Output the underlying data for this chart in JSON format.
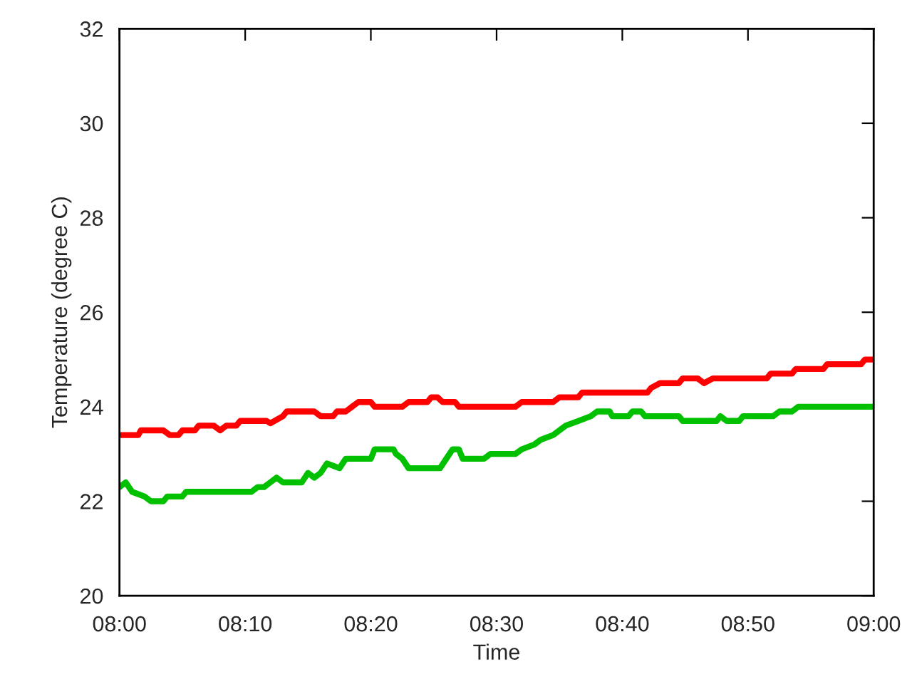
{
  "chart_data": {
    "type": "line",
    "xlabel": "Time",
    "ylabel": "Temperature (degree C)",
    "xlim": [
      8,
      9
    ],
    "ylim": [
      20,
      32
    ],
    "xticks": [
      {
        "value": 8,
        "label": "08:00"
      },
      {
        "value": 8.1667,
        "label": "08:10"
      },
      {
        "value": 8.3333,
        "label": "08:20"
      },
      {
        "value": 8.5,
        "label": "08:30"
      },
      {
        "value": 8.6667,
        "label": "08:40"
      },
      {
        "value": 8.8333,
        "label": "08:50"
      },
      {
        "value": 9,
        "label": "09:00"
      }
    ],
    "yticks": [
      20,
      22,
      24,
      26,
      28,
      30,
      32
    ],
    "grid": false,
    "marker": "none",
    "line_style": "solid",
    "series": [
      {
        "color": "#ff0000",
        "x": [
          8,
          8.025,
          8.0283,
          8.0583,
          8.0667,
          8.0783,
          8.0833,
          8.1,
          8.105,
          8.125,
          8.1333,
          8.1417,
          8.155,
          8.16,
          8.195,
          8.2,
          8.2167,
          8.2217,
          8.2583,
          8.2667,
          8.2833,
          8.2883,
          8.3,
          8.3083,
          8.3167,
          8.3333,
          8.3383,
          8.375,
          8.3833,
          8.4083,
          8.4133,
          8.4217,
          8.4283,
          8.445,
          8.45,
          8.525,
          8.5333,
          8.575,
          8.5833,
          8.6083,
          8.6133,
          8.7,
          8.705,
          8.7167,
          8.7417,
          8.7467,
          8.7667,
          8.775,
          8.7867,
          8.8583,
          8.8633,
          8.8917,
          8.8967,
          8.9333,
          8.9383,
          8.9833,
          8.9883,
          9
        ],
        "values": [
          23.4,
          23.4,
          23.5,
          23.5,
          23.4,
          23.4,
          23.5,
          23.5,
          23.6,
          23.6,
          23.5,
          23.6,
          23.6,
          23.7,
          23.7,
          23.65,
          23.8,
          23.9,
          23.9,
          23.8,
          23.8,
          23.9,
          23.9,
          24.0,
          24.1,
          24.1,
          24.0,
          24.0,
          24.1,
          24.1,
          24.2,
          24.2,
          24.1,
          24.1,
          24.0,
          24.0,
          24.1,
          24.1,
          24.2,
          24.2,
          24.3,
          24.3,
          24.4,
          24.5,
          24.5,
          24.6,
          24.6,
          24.5,
          24.6,
          24.6,
          24.7,
          24.7,
          24.8,
          24.8,
          24.9,
          24.9,
          25.0,
          25.0
        ]
      },
      {
        "color": "#00c000",
        "x": [
          8,
          8.0083,
          8.0167,
          8.0333,
          8.0417,
          8.0583,
          8.0633,
          8.0833,
          8.0883,
          8.175,
          8.1833,
          8.1917,
          8.2,
          8.2083,
          8.2167,
          8.2417,
          8.25,
          8.2583,
          8.2667,
          8.275,
          8.2917,
          8.3,
          8.3333,
          8.3383,
          8.3633,
          8.3667,
          8.375,
          8.3833,
          8.425,
          8.4333,
          8.4417,
          8.45,
          8.455,
          8.4833,
          8.4917,
          8.525,
          8.5333,
          8.55,
          8.5583,
          8.575,
          8.5917,
          8.6083,
          8.625,
          8.6333,
          8.65,
          8.6533,
          8.675,
          8.68,
          8.6917,
          8.6967,
          8.7417,
          8.7467,
          8.7917,
          8.7967,
          8.805,
          8.8217,
          8.8267,
          8.8667,
          8.875,
          8.8917,
          8.9,
          9
        ],
        "values": [
          22.3,
          22.4,
          22.2,
          22.1,
          22.0,
          22.0,
          22.1,
          22.1,
          22.2,
          22.2,
          22.3,
          22.3,
          22.4,
          22.5,
          22.4,
          22.4,
          22.6,
          22.5,
          22.6,
          22.8,
          22.7,
          22.9,
          22.9,
          23.1,
          23.1,
          23.0,
          22.9,
          22.7,
          22.7,
          22.9,
          23.1,
          23.1,
          22.9,
          22.9,
          23.0,
          23.0,
          23.1,
          23.2,
          23.3,
          23.4,
          23.6,
          23.7,
          23.8,
          23.9,
          23.9,
          23.8,
          23.8,
          23.9,
          23.9,
          23.8,
          23.8,
          23.7,
          23.7,
          23.8,
          23.7,
          23.7,
          23.8,
          23.8,
          23.9,
          23.9,
          24.0,
          24.0
        ]
      }
    ]
  }
}
